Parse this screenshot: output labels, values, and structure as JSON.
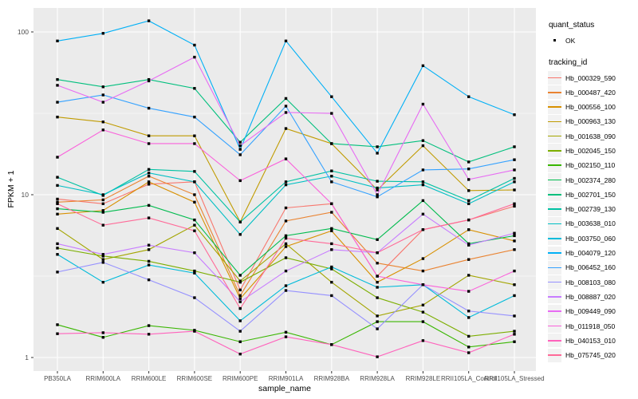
{
  "figure": {
    "x_axis_title": "sample_name",
    "y_axis_title": "FPKM + 1"
  },
  "legend": {
    "quant_title": "quant_status",
    "quant_items": [
      {
        "label": "OK",
        "marker": "black-point"
      }
    ],
    "tracking_title": "tracking_id"
  },
  "chart_data": {
    "type": "line",
    "title": "",
    "xlabel": "sample_name",
    "ylabel": "FPKM + 1",
    "yscale": "log10",
    "ylim": [
      0.85,
      140
    ],
    "yticks": [
      1,
      10,
      100
    ],
    "ytick_labels": [
      "1",
      "10",
      "100"
    ],
    "yminor": [
      3.1623,
      31.623
    ],
    "grid": true,
    "legend_position": "right",
    "point_marker": "small-black-square",
    "categories": [
      "PB350LA",
      "RRIM600LA",
      "RRIM600LE",
      "RRIM600SE",
      "RRIM600PE",
      "RRIM901LA",
      "RRIM928BA",
      "RRIM928LA",
      "RRIM928LE",
      "RRII105LA_Control",
      "RRII105LA_Stressed"
    ],
    "series": [
      {
        "name": "Hb_000329_590",
        "color": "#F8766D",
        "values": [
          9.4,
          8.8,
          11.6,
          12.0,
          2.6,
          8.3,
          8.8,
          3.16,
          6.1,
          7.0,
          8.5
        ]
      },
      {
        "name": "Hb_000487_420",
        "color": "#EA8331",
        "values": [
          9.0,
          9.3,
          13.0,
          10.0,
          2.4,
          6.9,
          7.8,
          3.8,
          3.4,
          4.0,
          4.6
        ]
      },
      {
        "name": "Hb_000556_100",
        "color": "#D89000",
        "values": [
          7.6,
          8.0,
          12.0,
          9.0,
          2.3,
          4.8,
          6.0,
          2.9,
          4.05,
          6.1,
          5.2
        ]
      },
      {
        "name": "Hb_000963_130",
        "color": "#C09B00",
        "values": [
          30,
          28,
          23,
          23,
          6.8,
          25.5,
          20.6,
          10.7,
          20,
          10.6,
          10.7
        ]
      },
      {
        "name": "Hb_001638_090",
        "color": "#A3A500",
        "values": [
          6.2,
          4.0,
          4.6,
          6.5,
          2.95,
          5.0,
          2.9,
          1.8,
          2.1,
          3.2,
          2.8
        ]
      },
      {
        "name": "Hb_002045_150",
        "color": "#7CAE00",
        "values": [
          4.7,
          4.2,
          3.9,
          3.4,
          2.9,
          4.1,
          3.5,
          2.33,
          1.9,
          1.35,
          1.45
        ]
      },
      {
        "name": "Hb_002150_110",
        "color": "#39B600",
        "values": [
          1.59,
          1.33,
          1.57,
          1.47,
          1.25,
          1.43,
          1.2,
          1.66,
          1.66,
          1.16,
          1.25
        ]
      },
      {
        "name": "Hb_002374_280",
        "color": "#00BB4E",
        "values": [
          8.2,
          7.8,
          8.6,
          7.0,
          3.2,
          5.6,
          6.2,
          5.3,
          9.2,
          5.0,
          5.6
        ]
      },
      {
        "name": "Hb_002701_150",
        "color": "#00BF7D",
        "values": [
          51,
          46,
          51,
          45,
          21,
          39,
          20.6,
          19.7,
          21.5,
          15.9,
          19.7
        ]
      },
      {
        "name": "Hb_002739_130",
        "color": "#00C1A3",
        "values": [
          12.8,
          9.9,
          14.3,
          13.9,
          6.8,
          12.0,
          14.0,
          12.1,
          12.0,
          9.2,
          12.6
        ]
      },
      {
        "name": "Hb_003638_010",
        "color": "#00BFC4",
        "values": [
          11.4,
          10.0,
          13.6,
          12.0,
          5.7,
          11.5,
          13.0,
          11.0,
          11.5,
          8.8,
          12.0
        ]
      },
      {
        "name": "Hb_003750_060",
        "color": "#00BBDA",
        "values": [
          4.3,
          2.9,
          3.7,
          3.3,
          1.68,
          2.76,
          3.6,
          2.7,
          2.8,
          1.76,
          2.4
        ]
      },
      {
        "name": "Hb_004079_120",
        "color": "#00B0F6",
        "values": [
          88,
          98,
          117,
          83,
          19,
          88,
          40,
          18,
          62,
          40,
          31
        ]
      },
      {
        "name": "Hb_006452_160",
        "color": "#35A2FF",
        "values": [
          37,
          41,
          34,
          30,
          17.6,
          35,
          12,
          9.7,
          14.2,
          14.4,
          16.4
        ]
      },
      {
        "name": "Hb_008103_080",
        "color": "#9590FF",
        "values": [
          3.35,
          3.84,
          3.0,
          2.33,
          1.45,
          2.58,
          2.4,
          1.5,
          2.8,
          1.93,
          1.8
        ]
      },
      {
        "name": "Hb_008887_020",
        "color": "#C77CFF",
        "values": [
          5.0,
          4.3,
          4.9,
          4.4,
          2.2,
          3.4,
          4.6,
          4.4,
          7.6,
          4.9,
          5.8
        ]
      },
      {
        "name": "Hb_009449_090",
        "color": "#E76BF3",
        "values": [
          47,
          37,
          50,
          70,
          20,
          32,
          31.6,
          10,
          36,
          12.4,
          14.2
        ]
      },
      {
        "name": "Hb_011918_050",
        "color": "#FA62DB",
        "values": [
          17,
          25,
          20.6,
          20.6,
          12.2,
          16.6,
          8.8,
          3.16,
          2.8,
          2.55,
          3.4
        ]
      },
      {
        "name": "Hb_040153_010",
        "color": "#FF62BC",
        "values": [
          1.4,
          1.42,
          1.39,
          1.45,
          1.05,
          1.34,
          1.2,
          1.01,
          1.27,
          1.07,
          1.39
        ]
      },
      {
        "name": "Hb_075745_020",
        "color": "#FF6A98",
        "values": [
          8.8,
          6.5,
          7.2,
          6.0,
          2.0,
          5.4,
          5.0,
          4.4,
          6.1,
          7.0,
          8.8
        ]
      }
    ],
    "layout": {
      "panel_bg": "#EBEBEB",
      "grid_color": "#FFFFFF",
      "tick_label_color": "#4D4D4D",
      "tick_mark_color": "#333333",
      "marker_color": "#000000",
      "legend_key_bg": "#F2F2F2"
    }
  }
}
